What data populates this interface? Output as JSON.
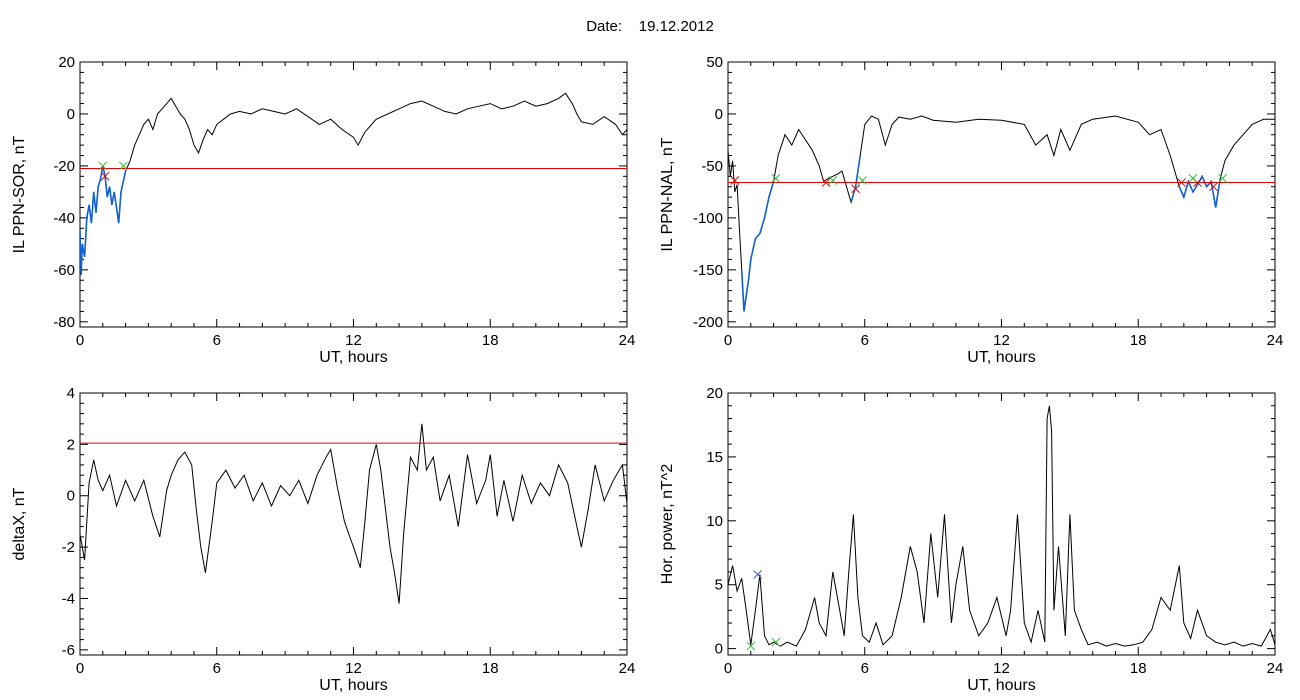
{
  "header": {
    "date_label": "Date:",
    "date_value": "19.12.2012"
  },
  "chart_data": [
    {
      "type": "line",
      "xlabel": "UT, hours",
      "ylabel": "IL PPN-SOR, nT",
      "xlim": [
        0,
        24
      ],
      "ylim": [
        -82,
        20
      ],
      "xticks": [
        0,
        6,
        12,
        18,
        24
      ],
      "yticks": [
        -80,
        -60,
        -40,
        -20,
        0,
        20
      ],
      "threshold": {
        "y": -21,
        "color": "#e00000"
      },
      "highlight_color": "#1060d0",
      "highlight_ranges": [
        [
          0,
          2.0
        ]
      ],
      "series": [
        {
          "color": "#000000",
          "x": [
            0,
            0.05,
            0.1,
            0.2,
            0.3,
            0.4,
            0.5,
            0.6,
            0.7,
            0.8,
            0.9,
            1.0,
            1.1,
            1.2,
            1.3,
            1.4,
            1.5,
            1.6,
            1.7,
            1.8,
            1.9,
            2.0,
            2.2,
            2.4,
            2.6,
            2.8,
            3.0,
            3.2,
            3.4,
            3.6,
            3.8,
            4.0,
            4.2,
            4.4,
            4.6,
            4.8,
            5.0,
            5.2,
            5.4,
            5.6,
            5.8,
            6.0,
            6.3,
            6.6,
            7.0,
            7.5,
            8.0,
            8.5,
            9.0,
            9.5,
            10.0,
            10.5,
            11.0,
            11.5,
            12.0,
            12.2,
            12.5,
            13.0,
            13.5,
            14.0,
            14.5,
            15.0,
            15.5,
            16.0,
            16.5,
            17.0,
            17.5,
            18.0,
            18.5,
            19.0,
            19.5,
            20.0,
            20.5,
            21.0,
            21.3,
            21.6,
            21.8,
            22.0,
            22.5,
            23.0,
            23.5,
            23.8,
            24.0
          ],
          "y": [
            -45,
            -62,
            -50,
            -55,
            -40,
            -35,
            -42,
            -30,
            -38,
            -28,
            -25,
            -20,
            -24,
            -32,
            -28,
            -35,
            -30,
            -36,
            -42,
            -30,
            -26,
            -22,
            -18,
            -12,
            -8,
            -4,
            -2,
            -6,
            0,
            2,
            4,
            6,
            3,
            0,
            -2,
            -6,
            -12,
            -15,
            -10,
            -6,
            -8,
            -4,
            -2,
            0,
            1,
            0,
            2,
            1,
            0,
            2,
            -1,
            -4,
            -2,
            -6,
            -9,
            -12,
            -7,
            -2,
            0,
            2,
            4,
            5,
            3,
            1,
            0,
            2,
            3,
            4,
            2,
            3,
            5,
            3,
            4,
            6,
            8,
            4,
            0,
            -3,
            -4,
            -1,
            -4,
            -8,
            -6
          ]
        }
      ],
      "markers": [
        {
          "symbol": "x",
          "color": "#e00000",
          "x": [
            1.1
          ],
          "y": [
            -24
          ]
        },
        {
          "symbol": "x",
          "color": "#30c030",
          "x": [
            1.0,
            1.9
          ],
          "y": [
            -20,
            -20
          ]
        }
      ]
    },
    {
      "type": "line",
      "xlabel": "UT, hours",
      "ylabel": "IL PPN-NAL, nT",
      "xlim": [
        0,
        24
      ],
      "ylim": [
        -205,
        50
      ],
      "xticks": [
        0,
        6,
        12,
        18,
        24
      ],
      "yticks": [
        -200,
        -150,
        -100,
        -50,
        0,
        50
      ],
      "threshold": {
        "y": -66,
        "color": "#e00000"
      },
      "highlight_color": "#1060d0",
      "highlight_ranges": [
        [
          0.6,
          2.1
        ],
        [
          5.4,
          5.8
        ],
        [
          19.8,
          21.6
        ]
      ],
      "series": [
        {
          "color": "#000000",
          "x": [
            0,
            0.1,
            0.2,
            0.3,
            0.4,
            0.5,
            0.6,
            0.7,
            0.8,
            0.9,
            1.0,
            1.2,
            1.4,
            1.6,
            1.8,
            2.0,
            2.2,
            2.5,
            2.8,
            3.1,
            3.4,
            3.7,
            4.0,
            4.2,
            4.4,
            4.6,
            4.8,
            5.0,
            5.2,
            5.4,
            5.6,
            5.8,
            6.0,
            6.3,
            6.6,
            6.9,
            7.2,
            7.5,
            8.0,
            8.5,
            9.0,
            10.0,
            11.0,
            12.0,
            13.0,
            13.5,
            14.0,
            14.3,
            14.6,
            15.0,
            15.5,
            16.0,
            17.0,
            18.0,
            18.5,
            19.0,
            19.4,
            19.8,
            20.0,
            20.2,
            20.4,
            20.6,
            20.8,
            21.0,
            21.2,
            21.4,
            21.6,
            21.8,
            22.2,
            22.6,
            23.0,
            23.5,
            24.0
          ],
          "y": [
            -35,
            -60,
            -45,
            -75,
            -68,
            -110,
            -150,
            -190,
            -175,
            -160,
            -140,
            -120,
            -115,
            -100,
            -80,
            -65,
            -40,
            -20,
            -30,
            -15,
            -25,
            -35,
            -50,
            -65,
            -62,
            -60,
            -58,
            -55,
            -70,
            -85,
            -70,
            -40,
            -10,
            -2,
            -5,
            -30,
            -10,
            -3,
            -5,
            -2,
            -6,
            -8,
            -5,
            -6,
            -10,
            -30,
            -20,
            -40,
            -15,
            -35,
            -10,
            -5,
            -2,
            -8,
            -20,
            -15,
            -40,
            -70,
            -80,
            -65,
            -75,
            -68,
            -60,
            -70,
            -65,
            -90,
            -62,
            -45,
            -30,
            -20,
            -10,
            -5,
            -5
          ]
        }
      ],
      "markers": [
        {
          "symbol": "x",
          "color": "#e00000",
          "x": [
            0.3,
            4.3,
            5.6,
            19.9,
            20.6,
            21.3
          ],
          "y": [
            -64,
            -66,
            -72,
            -66,
            -66,
            -70
          ]
        },
        {
          "symbol": "x",
          "color": "#30c030",
          "x": [
            2.1,
            4.6,
            5.9,
            20.4,
            21.7
          ],
          "y": [
            -62,
            -64,
            -64,
            -62,
            -62
          ]
        }
      ]
    },
    {
      "type": "line",
      "xlabel": "UT, hours",
      "ylabel": "deltaX, nT",
      "xlim": [
        0,
        24
      ],
      "ylim": [
        -6.2,
        4
      ],
      "xticks": [
        0,
        6,
        12,
        18,
        24
      ],
      "yticks": [
        -6,
        -4,
        -2,
        0,
        2,
        4
      ],
      "threshold": {
        "y": 2.05,
        "color": "#e00000"
      },
      "highlight_color": "#1060d0",
      "highlight_ranges": [],
      "series": [
        {
          "color": "#000000",
          "x": [
            0,
            0.2,
            0.4,
            0.6,
            0.8,
            1.0,
            1.3,
            1.6,
            2.0,
            2.4,
            2.8,
            3.2,
            3.5,
            3.8,
            4.0,
            4.3,
            4.6,
            4.9,
            5.1,
            5.3,
            5.5,
            5.8,
            6.0,
            6.4,
            6.8,
            7.2,
            7.6,
            8.0,
            8.4,
            8.8,
            9.2,
            9.6,
            10.0,
            10.4,
            10.8,
            11.0,
            11.3,
            11.6,
            11.8,
            12.0,
            12.3,
            12.5,
            12.7,
            13.0,
            13.2,
            13.4,
            13.6,
            13.8,
            14.0,
            14.2,
            14.5,
            14.8,
            15.0,
            15.2,
            15.5,
            15.8,
            16.2,
            16.6,
            17.0,
            17.4,
            17.8,
            18.0,
            18.3,
            18.6,
            19.0,
            19.4,
            19.8,
            20.2,
            20.6,
            21.0,
            21.4,
            21.8,
            22.0,
            22.3,
            22.6,
            23.0,
            23.4,
            23.8,
            24.0
          ],
          "y": [
            -1.5,
            -2.5,
            0.5,
            1.4,
            0.6,
            0.2,
            0.8,
            -0.4,
            0.6,
            -0.2,
            0.6,
            -0.8,
            -1.6,
            0.2,
            0.8,
            1.4,
            1.7,
            1.2,
            -0.5,
            -2.0,
            -3.0,
            -1.0,
            0.5,
            1.0,
            0.3,
            0.8,
            -0.2,
            0.5,
            -0.4,
            0.4,
            0.0,
            0.6,
            -0.3,
            0.8,
            1.5,
            1.8,
            0.3,
            -1.0,
            -1.5,
            -2.0,
            -2.8,
            -1.0,
            1.0,
            2.0,
            1.0,
            -0.5,
            -2.0,
            -3.0,
            -4.2,
            -1.5,
            1.5,
            1.0,
            2.8,
            1.0,
            1.5,
            -0.2,
            0.8,
            -1.2,
            1.6,
            -0.3,
            0.6,
            1.6,
            -0.8,
            0.6,
            -1.0,
            0.8,
            -0.3,
            0.5,
            0.0,
            1.2,
            0.5,
            -1.2,
            -2.0,
            -0.5,
            1.2,
            -0.2,
            0.6,
            1.2,
            -0.3
          ]
        }
      ],
      "markers": []
    },
    {
      "type": "line",
      "xlabel": "UT, hours",
      "ylabel": "Hor. power, nT^2",
      "xlim": [
        0,
        24
      ],
      "ylim": [
        -0.5,
        20
      ],
      "xticks": [
        0,
        6,
        12,
        18,
        24
      ],
      "yticks": [
        0,
        5,
        10,
        15,
        20
      ],
      "threshold": null,
      "highlight_color": "#1060d0",
      "highlight_ranges": [],
      "series": [
        {
          "color": "#000000",
          "x": [
            0,
            0.2,
            0.4,
            0.6,
            0.8,
            1.0,
            1.2,
            1.4,
            1.6,
            1.8,
            2.0,
            2.3,
            2.6,
            3.0,
            3.4,
            3.8,
            4.0,
            4.3,
            4.6,
            4.9,
            5.1,
            5.3,
            5.5,
            5.7,
            5.9,
            6.2,
            6.5,
            6.8,
            7.2,
            7.6,
            8.0,
            8.3,
            8.6,
            8.9,
            9.2,
            9.5,
            9.8,
            10.0,
            10.3,
            10.6,
            11.0,
            11.4,
            11.8,
            12.2,
            12.4,
            12.7,
            13.0,
            13.3,
            13.6,
            13.9,
            14.0,
            14.1,
            14.2,
            14.3,
            14.5,
            14.8,
            15.0,
            15.2,
            15.5,
            15.8,
            16.2,
            16.6,
            17.0,
            17.4,
            17.8,
            18.2,
            18.6,
            19.0,
            19.4,
            19.8,
            20.0,
            20.3,
            20.6,
            21.0,
            21.4,
            21.8,
            22.2,
            22.6,
            23.0,
            23.4,
            23.8,
            24.0
          ],
          "y": [
            5,
            6.5,
            4.5,
            5.5,
            3,
            0.3,
            3,
            5.8,
            1,
            0.3,
            0.5,
            0.2,
            0.5,
            0.2,
            1.5,
            4,
            2,
            1,
            6,
            3,
            1,
            6,
            10.5,
            4,
            1,
            0.5,
            2,
            0.3,
            1,
            4,
            8,
            6,
            2,
            9,
            4,
            10.5,
            2,
            5,
            8,
            3,
            1,
            2,
            4,
            1,
            3,
            10.5,
            2,
            0.5,
            3,
            0.5,
            18,
            19,
            17,
            3,
            8,
            1,
            10.5,
            3,
            1.5,
            0.3,
            0.5,
            0.2,
            0.4,
            0.2,
            0.3,
            0.5,
            1.5,
            4,
            3,
            6.5,
            2,
            0.8,
            3,
            1,
            0.5,
            0.3,
            0.5,
            0.2,
            0.4,
            0.2,
            1.5,
            0.3
          ]
        }
      ],
      "markers": [
        {
          "symbol": "x",
          "color": "#3060d0",
          "x": [
            1.3
          ],
          "y": [
            5.8
          ]
        },
        {
          "symbol": "x",
          "color": "#30c030",
          "x": [
            1.0,
            2.1
          ],
          "y": [
            0.2,
            0.5
          ]
        }
      ]
    }
  ],
  "colors": {
    "axis": "#000000",
    "threshold": "#e00000",
    "highlight": "#1060d0"
  }
}
